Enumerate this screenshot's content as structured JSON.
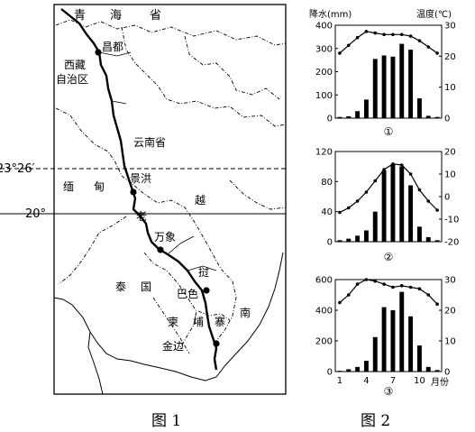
{
  "figure1": {
    "caption": "图 1",
    "regions": [
      "青",
      "海",
      "省",
      "西藏",
      "自治区",
      "云南省",
      "缅",
      "甸",
      "老",
      "越",
      "泰",
      "国",
      "挝",
      "南",
      "柬",
      "埔",
      "寨"
    ],
    "cities": [
      "昌都",
      "景洪",
      "万象",
      "巴色",
      "金边"
    ],
    "latitudes": [
      "23°26′",
      "20°"
    ]
  },
  "figure2": {
    "caption": "图 2",
    "left_axis_label": "降水(mm)",
    "right_axis_label": "温度(℃)",
    "month_axis_label": "月份",
    "month_ticks": [
      "1",
      "4",
      "7",
      "10"
    ],
    "chart_data": [
      {
        "type": "bar+line",
        "title": "①",
        "categories": [
          "1",
          "2",
          "3",
          "4",
          "5",
          "6",
          "7",
          "8",
          "9",
          "10",
          "11",
          "12"
        ],
        "series": [
          {
            "values": [
              5,
              8,
              30,
              80,
              255,
              270,
              265,
              320,
              295,
              85,
              10,
              5
            ]
          },
          {
            "values": [
              21,
              23.5,
              26,
              28,
              27.5,
              27,
              27,
              27,
              26.5,
              25,
              23,
              21
            ]
          }
        ],
        "ylim_left": [
          0,
          400
        ],
        "left_ticks": [
          "0",
          "100",
          "200",
          "300",
          "400"
        ],
        "ylim_right": [
          0,
          30
        ],
        "right_ticks": [
          "0",
          "10",
          "20",
          "30"
        ]
      },
      {
        "type": "bar+line",
        "title": "②",
        "categories": [
          "1",
          "2",
          "3",
          "4",
          "5",
          "6",
          "7",
          "8",
          "9",
          "10",
          "11",
          "12"
        ],
        "series": [
          {
            "values": [
              2,
              4,
              8,
              15,
              40,
              95,
              103,
              100,
              75,
              20,
              6,
              2
            ]
          },
          {
            "values": [
              -7,
              -5,
              -2,
              2,
              7,
              12,
              14.5,
              14,
              10,
              3,
              -2,
              -6
            ]
          }
        ],
        "ylim_left": [
          0,
          120
        ],
        "left_ticks": [
          "0",
          "40",
          "80",
          "120"
        ],
        "ylim_right": [
          -20,
          20
        ],
        "right_ticks": [
          "-20",
          "-10",
          "0",
          "10",
          "20"
        ]
      },
      {
        "type": "bar+line",
        "title": "③",
        "categories": [
          "1",
          "2",
          "3",
          "4",
          "5",
          "6",
          "7",
          "8",
          "9",
          "10",
          "11",
          "12"
        ],
        "series": [
          {
            "values": [
              5,
              15,
              30,
              70,
              225,
              420,
              400,
              520,
              360,
              170,
              30,
              10
            ]
          },
          {
            "values": [
              22.5,
              25,
              28.5,
              30,
              29.5,
              28.5,
              27.5,
              28,
              27.5,
              27,
              25,
              22
            ]
          }
        ],
        "ylim_left": [
          0,
          600
        ],
        "left_ticks": [
          "0",
          "200",
          "400",
          "600"
        ],
        "ylim_right": [
          0,
          30
        ],
        "right_ticks": [
          "0",
          "10",
          "20",
          "30"
        ]
      }
    ]
  }
}
